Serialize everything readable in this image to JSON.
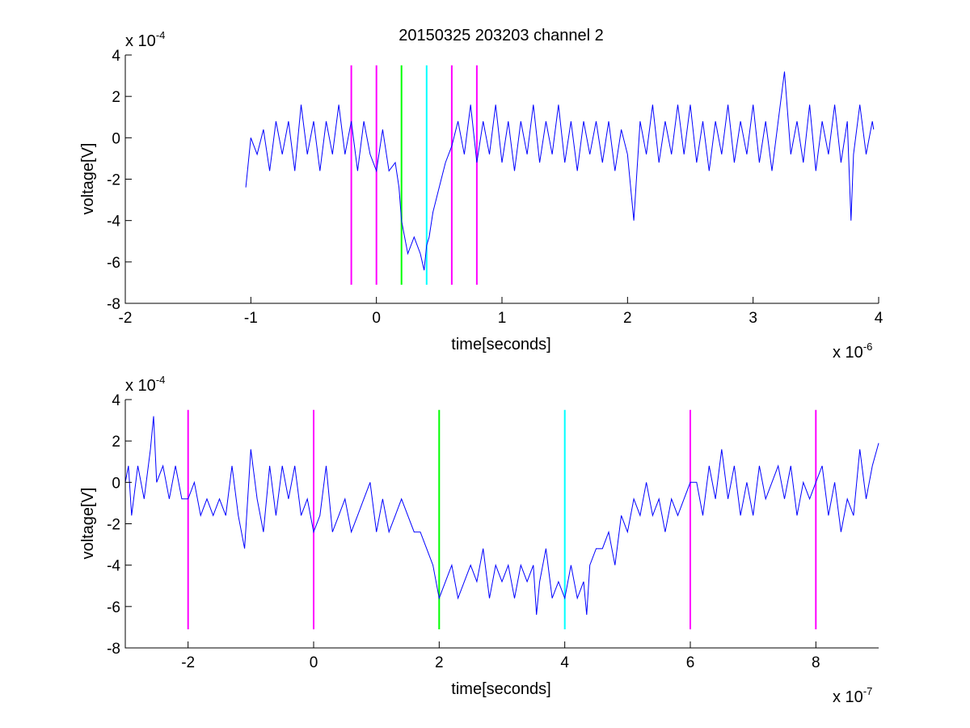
{
  "chart_data": [
    {
      "type": "line",
      "title": "20150325 203203 channel 2",
      "xlabel": "time[seconds]",
      "ylabel": "voltage[V]",
      "x_multiplier": {
        "base": "x 10",
        "exponent": "-6"
      },
      "y_multiplier": {
        "base": "x 10",
        "exponent": "-4"
      },
      "xlim": [
        -2,
        4
      ],
      "ylim": [
        -8,
        4
      ],
      "x_ticks": [
        -2,
        -1,
        0,
        1,
        2,
        3,
        4
      ],
      "x_tick_labels": [
        "-2",
        "-1",
        "0",
        "1",
        "2",
        "3",
        "4"
      ],
      "y_ticks": [
        -8,
        -6,
        -4,
        -2,
        0,
        2,
        4
      ],
      "y_tick_labels": [
        "-8",
        "-6",
        "-4",
        "-2",
        "0",
        "2",
        "4"
      ],
      "grid": false,
      "series": [
        {
          "color": "#0000ff",
          "x_range": [
            -1.04,
            3.96
          ],
          "points": [
            [
              -1.04,
              -2.4
            ],
            [
              -1.0,
              0.0
            ],
            [
              -0.95,
              -0.8
            ],
            [
              -0.9,
              0.4
            ],
            [
              -0.85,
              -1.6
            ],
            [
              -0.8,
              0.8
            ],
            [
              -0.75,
              -0.8
            ],
            [
              -0.7,
              0.8
            ],
            [
              -0.65,
              -1.6
            ],
            [
              -0.6,
              1.6
            ],
            [
              -0.55,
              -0.8
            ],
            [
              -0.5,
              0.8
            ],
            [
              -0.45,
              -1.6
            ],
            [
              -0.4,
              0.8
            ],
            [
              -0.35,
              -0.8
            ],
            [
              -0.3,
              1.6
            ],
            [
              -0.25,
              -0.8
            ],
            [
              -0.2,
              0.8
            ],
            [
              -0.15,
              -1.6
            ],
            [
              -0.1,
              0.8
            ],
            [
              -0.05,
              -0.8
            ],
            [
              0.0,
              -1.6
            ],
            [
              0.05,
              0.4
            ],
            [
              0.1,
              -1.6
            ],
            [
              0.15,
              -1.2
            ],
            [
              0.18,
              -2.4
            ],
            [
              0.2,
              -4.0
            ],
            [
              0.25,
              -5.6
            ],
            [
              0.3,
              -4.8
            ],
            [
              0.35,
              -5.6
            ],
            [
              0.38,
              -6.4
            ],
            [
              0.4,
              -5.2
            ],
            [
              0.42,
              -4.8
            ],
            [
              0.45,
              -3.6
            ],
            [
              0.5,
              -2.4
            ],
            [
              0.55,
              -1.2
            ],
            [
              0.6,
              -0.4
            ],
            [
              0.65,
              0.8
            ],
            [
              0.7,
              -0.8
            ],
            [
              0.75,
              1.6
            ],
            [
              0.8,
              -1.2
            ],
            [
              0.85,
              0.8
            ],
            [
              0.9,
              -0.8
            ],
            [
              0.95,
              1.6
            ],
            [
              1.0,
              -1.2
            ],
            [
              1.05,
              0.8
            ],
            [
              1.1,
              -1.6
            ],
            [
              1.15,
              0.8
            ],
            [
              1.2,
              -0.8
            ],
            [
              1.25,
              1.6
            ],
            [
              1.3,
              -1.2
            ],
            [
              1.35,
              0.8
            ],
            [
              1.4,
              -0.8
            ],
            [
              1.45,
              1.6
            ],
            [
              1.5,
              -1.2
            ],
            [
              1.55,
              0.8
            ],
            [
              1.6,
              -1.6
            ],
            [
              1.65,
              0.8
            ],
            [
              1.7,
              -0.8
            ],
            [
              1.75,
              0.8
            ],
            [
              1.8,
              -1.2
            ],
            [
              1.85,
              0.8
            ],
            [
              1.9,
              -1.6
            ],
            [
              1.95,
              0.4
            ],
            [
              2.0,
              -0.8
            ],
            [
              2.05,
              -4.0
            ],
            [
              2.1,
              0.8
            ],
            [
              2.15,
              -0.8
            ],
            [
              2.2,
              1.6
            ],
            [
              2.25,
              -1.2
            ],
            [
              2.3,
              0.8
            ],
            [
              2.35,
              -0.8
            ],
            [
              2.4,
              1.6
            ],
            [
              2.45,
              -0.8
            ],
            [
              2.5,
              1.6
            ],
            [
              2.55,
              -1.2
            ],
            [
              2.6,
              0.8
            ],
            [
              2.65,
              -1.6
            ],
            [
              2.7,
              0.8
            ],
            [
              2.75,
              -0.8
            ],
            [
              2.8,
              1.6
            ],
            [
              2.85,
              -1.2
            ],
            [
              2.9,
              0.8
            ],
            [
              2.95,
              -0.8
            ],
            [
              3.0,
              1.6
            ],
            [
              3.05,
              -1.2
            ],
            [
              3.1,
              0.8
            ],
            [
              3.15,
              -1.6
            ],
            [
              3.2,
              0.8
            ],
            [
              3.25,
              3.2
            ],
            [
              3.3,
              -0.8
            ],
            [
              3.35,
              0.8
            ],
            [
              3.4,
              -1.2
            ],
            [
              3.45,
              1.6
            ],
            [
              3.5,
              -1.6
            ],
            [
              3.55,
              0.8
            ],
            [
              3.6,
              -0.8
            ],
            [
              3.65,
              1.6
            ],
            [
              3.7,
              -1.2
            ],
            [
              3.75,
              0.8
            ],
            [
              3.78,
              -4.0
            ],
            [
              3.8,
              -0.8
            ],
            [
              3.85,
              1.6
            ],
            [
              3.9,
              -0.8
            ],
            [
              3.95,
              0.8
            ],
            [
              3.96,
              0.4
            ]
          ]
        }
      ],
      "markers": [
        {
          "x": -0.2,
          "color": "#ff00ff"
        },
        {
          "x": 0.0,
          "color": "#ff00ff"
        },
        {
          "x": 0.2,
          "color": "#00ff00"
        },
        {
          "x": 0.4,
          "color": "#00ffff"
        },
        {
          "x": 0.6,
          "color": "#ff00ff"
        },
        {
          "x": 0.8,
          "color": "#ff00ff"
        }
      ],
      "marker_y_range": [
        -7.1,
        3.5
      ]
    },
    {
      "type": "line",
      "xlabel": "time[seconds]",
      "ylabel": "voltage[V]",
      "x_multiplier": {
        "base": "x 10",
        "exponent": "-7"
      },
      "y_multiplier": {
        "base": "x 10",
        "exponent": "-4"
      },
      "xlim": [
        -3,
        9
      ],
      "ylim": [
        -8,
        4
      ],
      "x_ticks": [
        -2,
        0,
        2,
        4,
        6,
        8
      ],
      "x_tick_labels": [
        "-2",
        "0",
        "2",
        "4",
        "6",
        "8"
      ],
      "y_ticks": [
        -8,
        -6,
        -4,
        -2,
        0,
        2,
        4
      ],
      "y_tick_labels": [
        "-8",
        "-6",
        "-4",
        "-2",
        "0",
        "2",
        "4"
      ],
      "grid": false,
      "series": [
        {
          "color": "#0000ff",
          "points": [
            [
              -3.0,
              0.0
            ],
            [
              -2.95,
              0.8
            ],
            [
              -2.9,
              -1.6
            ],
            [
              -2.8,
              0.8
            ],
            [
              -2.7,
              -0.8
            ],
            [
              -2.6,
              1.6
            ],
            [
              -2.55,
              3.2
            ],
            [
              -2.5,
              0.0
            ],
            [
              -2.4,
              0.8
            ],
            [
              -2.3,
              -0.8
            ],
            [
              -2.2,
              0.8
            ],
            [
              -2.1,
              -0.8
            ],
            [
              -2.0,
              -0.8
            ],
            [
              -1.9,
              0.0
            ],
            [
              -1.8,
              -1.6
            ],
            [
              -1.7,
              -0.8
            ],
            [
              -1.6,
              -1.6
            ],
            [
              -1.5,
              -0.8
            ],
            [
              -1.4,
              -1.6
            ],
            [
              -1.3,
              0.8
            ],
            [
              -1.2,
              -1.6
            ],
            [
              -1.1,
              -3.2
            ],
            [
              -1.0,
              1.6
            ],
            [
              -0.9,
              -0.8
            ],
            [
              -0.8,
              -2.4
            ],
            [
              -0.7,
              0.8
            ],
            [
              -0.6,
              -1.6
            ],
            [
              -0.5,
              0.8
            ],
            [
              -0.4,
              -0.8
            ],
            [
              -0.3,
              0.8
            ],
            [
              -0.2,
              -1.6
            ],
            [
              -0.1,
              -0.8
            ],
            [
              0.0,
              -2.4
            ],
            [
              0.1,
              -1.6
            ],
            [
              0.2,
              0.8
            ],
            [
              0.3,
              -2.4
            ],
            [
              0.4,
              -1.6
            ],
            [
              0.5,
              -0.8
            ],
            [
              0.6,
              -2.4
            ],
            [
              0.7,
              -1.6
            ],
            [
              0.8,
              -0.8
            ],
            [
              0.9,
              0.0
            ],
            [
              1.0,
              -2.4
            ],
            [
              1.1,
              -0.8
            ],
            [
              1.2,
              -2.4
            ],
            [
              1.3,
              -1.6
            ],
            [
              1.4,
              -0.8
            ],
            [
              1.5,
              -1.6
            ],
            [
              1.6,
              -2.4
            ],
            [
              1.7,
              -2.4
            ],
            [
              1.8,
              -3.2
            ],
            [
              1.9,
              -4.0
            ],
            [
              2.0,
              -5.6
            ],
            [
              2.1,
              -4.8
            ],
            [
              2.2,
              -4.0
            ],
            [
              2.3,
              -5.6
            ],
            [
              2.4,
              -4.8
            ],
            [
              2.5,
              -4.0
            ],
            [
              2.6,
              -4.8
            ],
            [
              2.7,
              -3.2
            ],
            [
              2.8,
              -5.6
            ],
            [
              2.9,
              -4.0
            ],
            [
              3.0,
              -4.8
            ],
            [
              3.1,
              -4.0
            ],
            [
              3.2,
              -5.6
            ],
            [
              3.3,
              -4.0
            ],
            [
              3.4,
              -4.8
            ],
            [
              3.5,
              -4.0
            ],
            [
              3.55,
              -6.4
            ],
            [
              3.6,
              -4.8
            ],
            [
              3.7,
              -3.2
            ],
            [
              3.8,
              -5.6
            ],
            [
              3.9,
              -4.8
            ],
            [
              4.0,
              -5.6
            ],
            [
              4.1,
              -4.0
            ],
            [
              4.2,
              -5.6
            ],
            [
              4.3,
              -4.8
            ],
            [
              4.35,
              -6.4
            ],
            [
              4.4,
              -4.0
            ],
            [
              4.5,
              -3.2
            ],
            [
              4.6,
              -3.2
            ],
            [
              4.7,
              -2.4
            ],
            [
              4.8,
              -4.0
            ],
            [
              4.9,
              -1.6
            ],
            [
              5.0,
              -2.4
            ],
            [
              5.1,
              -0.8
            ],
            [
              5.2,
              -1.6
            ],
            [
              5.3,
              0.0
            ],
            [
              5.4,
              -1.6
            ],
            [
              5.5,
              -0.8
            ],
            [
              5.6,
              -2.4
            ],
            [
              5.7,
              -0.8
            ],
            [
              5.8,
              -1.6
            ],
            [
              5.9,
              -0.8
            ],
            [
              6.0,
              0.0
            ],
            [
              6.1,
              0.0
            ],
            [
              6.2,
              -1.6
            ],
            [
              6.3,
              0.8
            ],
            [
              6.4,
              -0.8
            ],
            [
              6.5,
              1.6
            ],
            [
              6.6,
              -0.8
            ],
            [
              6.7,
              0.8
            ],
            [
              6.8,
              -1.6
            ],
            [
              6.9,
              0.0
            ],
            [
              7.0,
              -1.6
            ],
            [
              7.1,
              0.8
            ],
            [
              7.2,
              -0.8
            ],
            [
              7.3,
              0.0
            ],
            [
              7.4,
              0.8
            ],
            [
              7.5,
              -0.8
            ],
            [
              7.6,
              0.8
            ],
            [
              7.7,
              -1.6
            ],
            [
              7.8,
              0.0
            ],
            [
              7.9,
              -0.8
            ],
            [
              8.0,
              0.0
            ],
            [
              8.1,
              0.8
            ],
            [
              8.2,
              -1.6
            ],
            [
              8.3,
              0.0
            ],
            [
              8.4,
              -2.4
            ],
            [
              8.5,
              -0.8
            ],
            [
              8.6,
              -1.6
            ],
            [
              8.7,
              1.6
            ],
            [
              8.8,
              -0.8
            ],
            [
              8.9,
              0.8
            ],
            [
              9.0,
              1.9
            ]
          ]
        }
      ],
      "markers": [
        {
          "x": -2,
          "color": "#ff00ff"
        },
        {
          "x": 0,
          "color": "#ff00ff"
        },
        {
          "x": 2,
          "color": "#00ff00"
        },
        {
          "x": 4,
          "color": "#00ffff"
        },
        {
          "x": 6,
          "color": "#ff00ff"
        },
        {
          "x": 8,
          "color": "#ff00ff"
        }
      ],
      "marker_y_range": [
        -7.1,
        3.5
      ]
    }
  ]
}
